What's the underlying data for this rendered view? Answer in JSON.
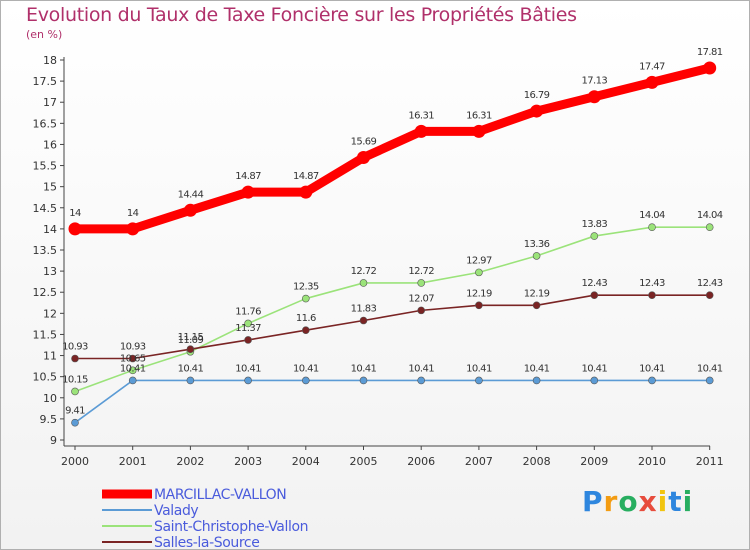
{
  "chart_data": {
    "type": "line",
    "title": "Evolution du Taux de Taxe Foncière sur les Propriétés Bâties",
    "subtitle": "(en %)",
    "x": [
      "2000",
      "2001",
      "2002",
      "2003",
      "2004",
      "2005",
      "2006",
      "2007",
      "2008",
      "2009",
      "2010",
      "2011"
    ],
    "ylim": [
      9,
      18
    ],
    "yticks": [
      "9",
      "9.5",
      "10",
      "10.5",
      "11",
      "11.5",
      "12",
      "12.5",
      "13",
      "13.5",
      "14",
      "14.5",
      "15",
      "15.5",
      "16",
      "16.5",
      "17",
      "17.5",
      "18"
    ],
    "grid": false,
    "legend_position": "bottom-left",
    "series": [
      {
        "name": "MARCILLAC-VALLON",
        "color": "#ff0000",
        "values": [
          14,
          14,
          14.44,
          14.87,
          14.87,
          15.69,
          16.31,
          16.31,
          16.79,
          17.13,
          17.47,
          17.81
        ],
        "labels": [
          "14",
          "14",
          "14.44",
          "14.87",
          "14.87",
          "15.69",
          "16.31",
          "16.31",
          "16.79",
          "17.13",
          "17.47",
          "17.81"
        ]
      },
      {
        "name": "Valady",
        "color": "#5b9bd5",
        "values": [
          9.41,
          10.41,
          10.41,
          10.41,
          10.41,
          10.41,
          10.41,
          10.41,
          10.41,
          10.41,
          10.41,
          10.41
        ],
        "labels": [
          "9.41",
          "10.41",
          "10.41",
          "10.41",
          "10.41",
          "10.41",
          "10.41",
          "10.41",
          "10.41",
          "10.41",
          "10.41",
          "10.41"
        ]
      },
      {
        "name": "Saint-Christophe-Vallon",
        "color": "#9be37a",
        "values": [
          10.15,
          10.65,
          11.09,
          11.76,
          12.35,
          12.72,
          12.72,
          12.97,
          13.36,
          13.83,
          14.04,
          14.04
        ],
        "labels": [
          "10.15",
          "10.65",
          "11.09",
          "11.76",
          "12.35",
          "12.72",
          "12.72",
          "12.97",
          "13.36",
          "13.83",
          "14.04",
          "14.04"
        ]
      },
      {
        "name": "Salles-la-Source",
        "color": "#7a2424",
        "values": [
          10.93,
          10.93,
          11.15,
          11.37,
          11.6,
          11.83,
          12.07,
          12.19,
          12.19,
          12.43,
          12.43,
          12.43
        ],
        "labels": [
          "10.93",
          "10.93",
          "11.15",
          "11.37",
          "11.6",
          "11.83",
          "12.07",
          "12.19",
          "12.19",
          "12.43",
          "12.43",
          "12.43"
        ]
      }
    ]
  },
  "branding": {
    "logo_letters": [
      "P",
      "r",
      "o",
      "x",
      "i",
      "t",
      "i"
    ],
    "logo_colors": [
      "#2e86de",
      "#f39c12",
      "#27ae60",
      "#e74c3c",
      "#f1c40f",
      "#2e86de",
      "#27ae60"
    ]
  }
}
